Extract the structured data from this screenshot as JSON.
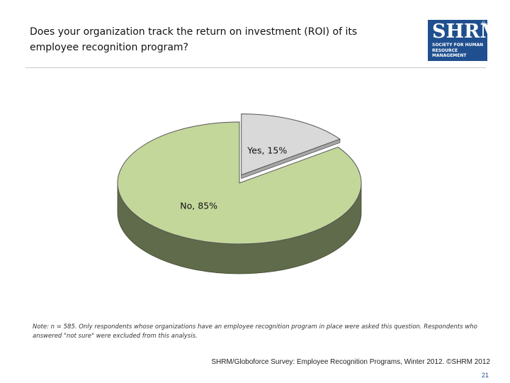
{
  "header": {
    "title": "Does your organization track the return on investment (ROI) of its employee recognition program?"
  },
  "logo": {
    "main": "SHRM",
    "registered": "®",
    "sub_lines": [
      "SOCIETY FOR HUMAN",
      "RESOURCE MANAGEMENT"
    ]
  },
  "chart_data": {
    "type": "pie",
    "slices": [
      {
        "label": "Yes",
        "value": 15,
        "display": "Yes, 15%",
        "color": "#d9d9d9",
        "side_color": "#a6a6a6",
        "exploded": true
      },
      {
        "label": "No",
        "value": 85,
        "display": "No, 85%",
        "color": "#c4d79b",
        "side_color": "#5f6b4a",
        "exploded": false
      }
    ],
    "style": "3d",
    "legend": "none"
  },
  "footer": {
    "note": "Note: n = 585. Only respondents whose organizations have an employee recognition program in place were asked this question. Respondents who answered \"not sure\" were excluded from this analysis.",
    "source": "SHRM/Globoforce Survey: Employee Recognition Programs, Winter 2012. ©SHRM 2012",
    "page_number": "21"
  }
}
